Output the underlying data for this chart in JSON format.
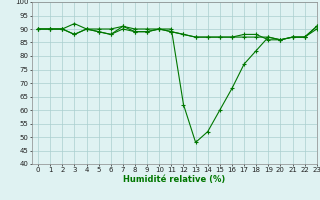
{
  "title": "",
  "xlabel": "Humidité relative (%)",
  "ylabel": "",
  "bg_color": "#dff2f2",
  "grid_color": "#aacfcf",
  "line_color": "#007700",
  "marker_color": "#007700",
  "xlim": [
    -0.5,
    23
  ],
  "ylim": [
    40,
    100
  ],
  "yticks": [
    40,
    45,
    50,
    55,
    60,
    65,
    70,
    75,
    80,
    85,
    90,
    95,
    100
  ],
  "xticks": [
    0,
    1,
    2,
    3,
    4,
    5,
    6,
    7,
    8,
    9,
    10,
    11,
    12,
    13,
    14,
    15,
    16,
    17,
    18,
    19,
    20,
    21,
    22,
    23
  ],
  "series1": {
    "x": [
      0,
      1,
      2,
      3,
      4,
      5,
      6,
      7,
      8,
      9,
      10,
      11,
      12,
      13,
      14,
      15,
      16,
      17,
      18,
      19,
      20,
      21,
      22,
      23
    ],
    "y": [
      90,
      90,
      90,
      92,
      90,
      90,
      90,
      91,
      90,
      90,
      90,
      90,
      62,
      48,
      52,
      60,
      68,
      77,
      82,
      87,
      86,
      87,
      87,
      91
    ]
  },
  "series2": {
    "x": [
      0,
      1,
      2,
      3,
      4,
      5,
      6,
      7,
      8,
      9,
      10,
      11,
      12,
      13,
      14,
      15,
      16,
      17,
      18,
      19,
      20,
      21,
      22,
      23
    ],
    "y": [
      90,
      90,
      90,
      88,
      90,
      89,
      88,
      91,
      89,
      89,
      90,
      89,
      88,
      87,
      87,
      87,
      87,
      87,
      87,
      87,
      86,
      87,
      87,
      91
    ]
  },
  "series3": {
    "x": [
      0,
      1,
      2,
      3,
      4,
      5,
      6,
      7,
      8,
      9,
      10,
      11,
      12,
      13,
      14,
      15,
      16,
      17,
      18,
      19,
      20,
      21,
      22,
      23
    ],
    "y": [
      90,
      90,
      90,
      88,
      90,
      89,
      88,
      90,
      89,
      89,
      90,
      89,
      88,
      87,
      87,
      87,
      87,
      88,
      88,
      86,
      86,
      87,
      87,
      90
    ]
  },
  "xlabel_fontsize": 6,
  "tick_fontsize": 5,
  "linewidth": 0.8,
  "markersize": 2.5
}
